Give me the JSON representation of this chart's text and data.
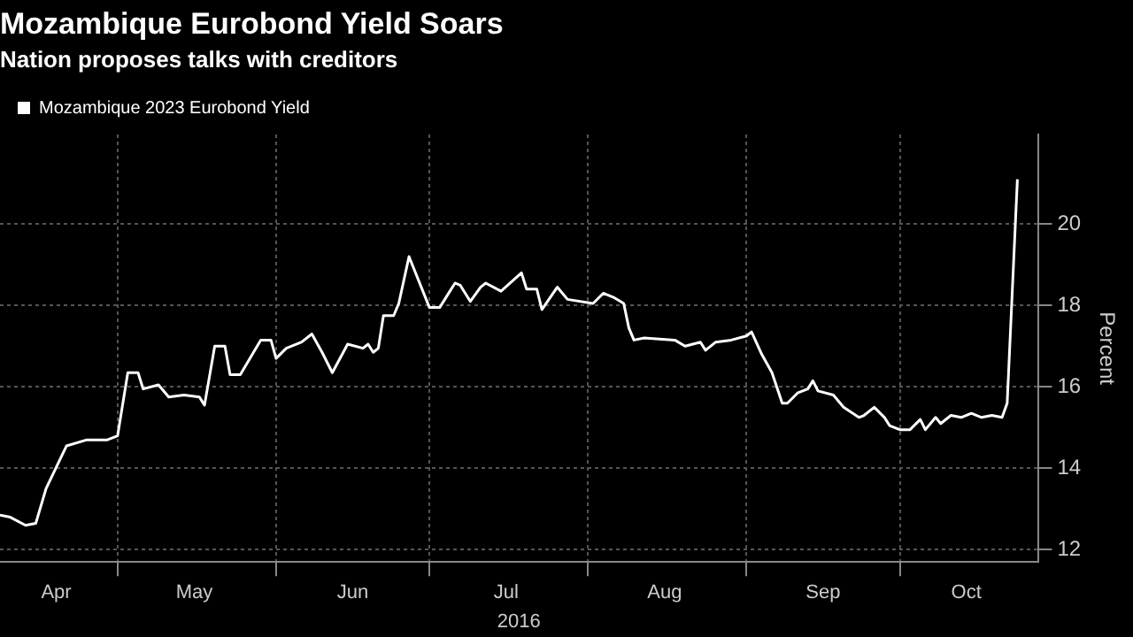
{
  "chart_data": {
    "type": "line",
    "title": "Mozambique Eurobond Yield Soars",
    "subtitle": "Nation proposes talks with creditors",
    "xlabel": "2016",
    "ylabel": "Percent",
    "x": [
      "2016-04-08",
      "2016-04-10",
      "2016-04-13",
      "2016-04-15",
      "2016-04-17",
      "2016-04-21",
      "2016-04-25",
      "2016-04-29",
      "2016-05-01",
      "2016-05-03",
      "2016-05-05",
      "2016-05-06",
      "2016-05-09",
      "2016-05-11",
      "2016-05-14",
      "2016-05-17",
      "2016-05-18",
      "2016-05-20",
      "2016-05-22",
      "2016-05-23",
      "2016-05-25",
      "2016-05-29",
      "2016-05-31",
      "2016-06-01",
      "2016-06-03",
      "2016-06-06",
      "2016-06-08",
      "2016-06-10",
      "2016-06-12",
      "2016-06-15",
      "2016-06-18",
      "2016-06-19",
      "2016-06-20",
      "2016-06-21",
      "2016-06-22",
      "2016-06-24",
      "2016-06-25",
      "2016-06-27",
      "2016-07-01",
      "2016-07-03",
      "2016-07-06",
      "2016-07-07",
      "2016-07-09",
      "2016-07-11",
      "2016-07-12",
      "2016-07-15",
      "2016-07-19",
      "2016-07-20",
      "2016-07-22",
      "2016-07-23",
      "2016-07-26",
      "2016-07-28",
      "2016-08-02",
      "2016-08-04",
      "2016-08-06",
      "2016-08-08",
      "2016-08-09",
      "2016-08-10",
      "2016-08-12",
      "2016-08-18",
      "2016-08-20",
      "2016-08-23",
      "2016-08-24",
      "2016-08-26",
      "2016-08-29",
      "2016-09-01",
      "2016-09-02",
      "2016-09-04",
      "2016-09-06",
      "2016-09-08",
      "2016-09-09",
      "2016-09-11",
      "2016-09-13",
      "2016-09-14",
      "2016-09-15",
      "2016-09-18",
      "2016-09-20",
      "2016-09-23",
      "2016-09-24",
      "2016-09-26",
      "2016-09-28",
      "2016-09-29",
      "2016-10-01",
      "2016-10-03",
      "2016-10-05",
      "2016-10-06",
      "2016-10-08",
      "2016-10-09",
      "2016-10-11",
      "2016-10-13",
      "2016-10-15",
      "2016-10-17",
      "2016-10-19",
      "2016-10-21",
      "2016-10-22",
      "2016-10-24"
    ],
    "series": [
      {
        "name": "Mozambique 2023 Eurobond Yield",
        "color": "#ffffff",
        "values": [
          12.85,
          12.8,
          12.6,
          12.65,
          13.5,
          14.55,
          14.7,
          14.7,
          14.8,
          16.35,
          16.35,
          15.95,
          16.05,
          15.75,
          15.8,
          15.75,
          15.55,
          17.0,
          17.0,
          16.3,
          16.3,
          17.15,
          17.15,
          16.7,
          16.95,
          17.1,
          17.3,
          16.85,
          16.35,
          17.05,
          16.95,
          17.05,
          16.85,
          16.95,
          17.75,
          17.75,
          18.05,
          19.2,
          17.95,
          17.95,
          18.55,
          18.5,
          18.1,
          18.45,
          18.55,
          18.35,
          18.8,
          18.4,
          18.4,
          17.9,
          18.45,
          18.15,
          18.05,
          18.3,
          18.2,
          18.05,
          17.45,
          17.15,
          17.2,
          17.15,
          17.0,
          17.1,
          16.9,
          17.1,
          17.15,
          17.25,
          17.35,
          16.8,
          16.35,
          15.6,
          15.6,
          15.85,
          15.95,
          16.15,
          15.9,
          15.8,
          15.5,
          15.25,
          15.3,
          15.5,
          15.25,
          15.05,
          14.95,
          14.95,
          15.2,
          14.95,
          15.25,
          15.1,
          15.3,
          15.25,
          15.35,
          15.25,
          15.3,
          15.25,
          15.6,
          21.1
        ]
      }
    ],
    "xlim": [
      "2016-04-08",
      "2016-10-28"
    ],
    "xticks": [
      {
        "value": "2016-04-19",
        "label": "Apr"
      },
      {
        "value": "2016-05-01",
        "label": null
      },
      {
        "value": "2016-05-16",
        "label": "May"
      },
      {
        "value": "2016-06-01",
        "label": null
      },
      {
        "value": "2016-06-16",
        "label": "Jun"
      },
      {
        "value": "2016-07-01",
        "label": null
      },
      {
        "value": "2016-07-16",
        "label": "Jul"
      },
      {
        "value": "2016-08-01",
        "label": null
      },
      {
        "value": "2016-08-16",
        "label": "Aug"
      },
      {
        "value": "2016-09-01",
        "label": null
      },
      {
        "value": "2016-09-16",
        "label": "Sep"
      },
      {
        "value": "2016-10-01",
        "label": null
      },
      {
        "value": "2016-10-14",
        "label": "Oct"
      }
    ],
    "ylim": [
      11.7,
      22.2
    ],
    "yticks": [
      12,
      14,
      16,
      18,
      20
    ],
    "grid": true,
    "legend": "top left",
    "marker": "none",
    "line_style": "solid"
  }
}
